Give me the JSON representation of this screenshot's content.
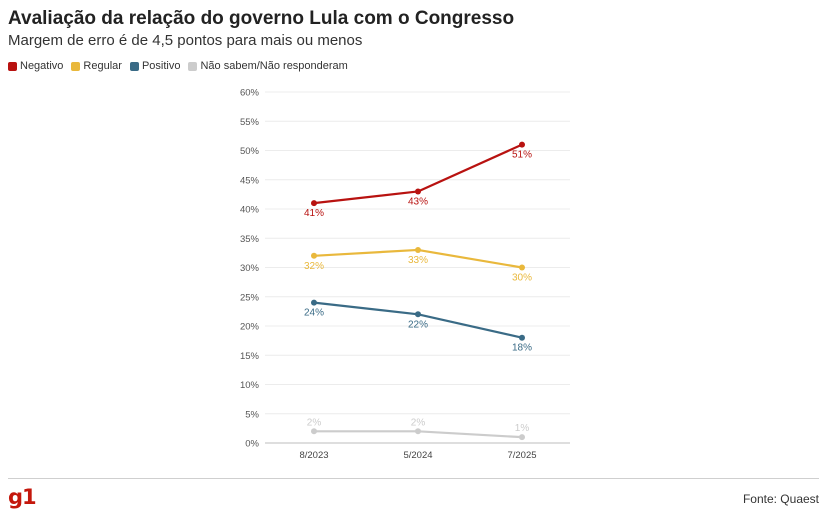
{
  "header": {
    "title": "Avaliação da relação do governo Lula com o Congresso",
    "subtitle": "Margem de erro é de 4,5 pontos para mais ou menos"
  },
  "footer": {
    "brand": "g1",
    "source": "Fonte: Quaest"
  },
  "chart_data": {
    "type": "line",
    "title": "Avaliação da relação do governo Lula com o Congresso",
    "subtitle": "Margem de erro é de 4,5 pontos para mais ou menos",
    "x": [
      "8/2023",
      "5/2024",
      "7/2025"
    ],
    "y_ticks": [
      "0%",
      "5%",
      "10%",
      "15%",
      "20%",
      "25%",
      "30%",
      "35%",
      "40%",
      "45%",
      "50%",
      "55%",
      "60%"
    ],
    "ylim": [
      0,
      60
    ],
    "grid": true,
    "legend_position": "top-left",
    "series": [
      {
        "name": "Negativo",
        "color": "#b81210",
        "values": [
          41,
          43,
          51
        ],
        "labels": [
          "41%",
          "43%",
          "51%"
        ]
      },
      {
        "name": "Regular",
        "color": "#e9b83c",
        "values": [
          32,
          33,
          30
        ],
        "labels": [
          "32%",
          "33%",
          "30%"
        ]
      },
      {
        "name": "Positivo",
        "color": "#3a6b86",
        "values": [
          24,
          22,
          18
        ],
        "labels": [
          "24%",
          "22%",
          "18%"
        ]
      },
      {
        "name": "Não sabem/Não responderam",
        "color": "#cccccc",
        "values": [
          2,
          2,
          1
        ],
        "labels": [
          "2%",
          "2%",
          "1%"
        ]
      }
    ]
  }
}
